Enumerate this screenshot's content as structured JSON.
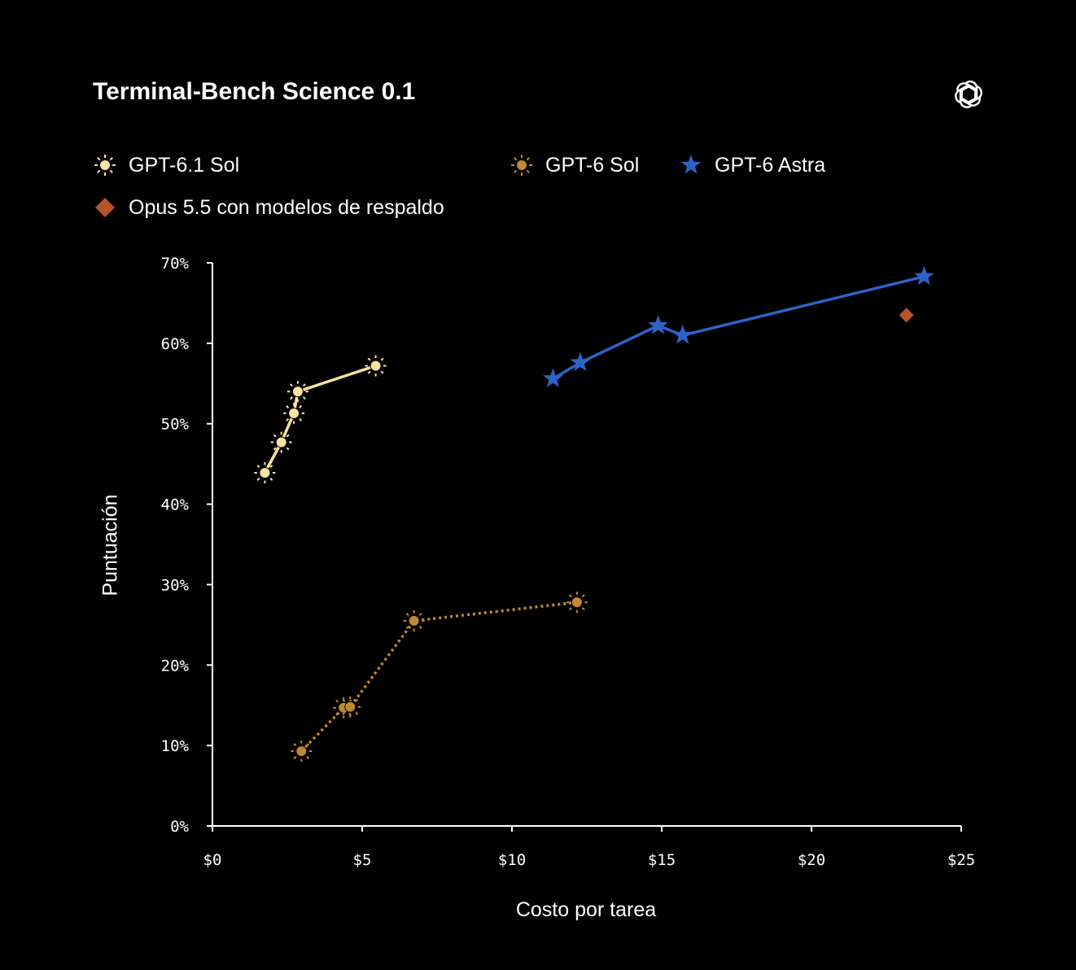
{
  "chart_data": {
    "type": "scatter",
    "title": "Terminal-Bench Science 0.1",
    "xlabel": "Costo por tarea",
    "ylabel": "Puntuación",
    "xlim": [
      0,
      25
    ],
    "ylim": [
      0,
      70
    ],
    "x_ticks": [
      0,
      5,
      10,
      15,
      20,
      25
    ],
    "x_tick_labels": [
      "$0",
      "$5",
      "$10",
      "$15",
      "$20",
      "$25"
    ],
    "y_ticks": [
      0,
      10,
      20,
      30,
      40,
      50,
      60,
      70
    ],
    "y_tick_labels": [
      "0%",
      "10%",
      "20%",
      "30%",
      "40%",
      "50%",
      "60%",
      "70%"
    ],
    "grid": false,
    "legend_position": "top",
    "series": [
      {
        "name": "GPT-6.1 Sol",
        "color": "#fbe3a0",
        "marker": "sun",
        "line": "solid",
        "points": [
          [
            1.75,
            43.9
          ],
          [
            2.3,
            47.7
          ],
          [
            2.72,
            51.3
          ],
          [
            2.85,
            54.0
          ],
          [
            5.45,
            57.2
          ]
        ]
      },
      {
        "name": "GPT-6 Sol",
        "color": "#c08a2e",
        "marker": "sun",
        "line": "dotted",
        "points": [
          [
            2.97,
            9.3
          ],
          [
            4.38,
            14.7
          ],
          [
            4.6,
            14.8
          ],
          [
            6.73,
            25.5
          ],
          [
            12.17,
            27.8
          ]
        ]
      },
      {
        "name": "GPT-6 Astra",
        "color": "#2d63c7",
        "marker": "star",
        "line": "solid",
        "points": [
          [
            11.37,
            55.6
          ],
          [
            12.28,
            57.6
          ],
          [
            14.88,
            62.2
          ],
          [
            15.7,
            61.0
          ],
          [
            23.76,
            68.3
          ]
        ]
      },
      {
        "name": "Opus 5.5 con modelos de respaldo",
        "color": "#b5532a",
        "marker": "diamond",
        "line": "none",
        "points": [
          [
            23.17,
            63.5
          ]
        ]
      }
    ]
  },
  "brand": {
    "logo_icon": "openai-logo-icon"
  }
}
